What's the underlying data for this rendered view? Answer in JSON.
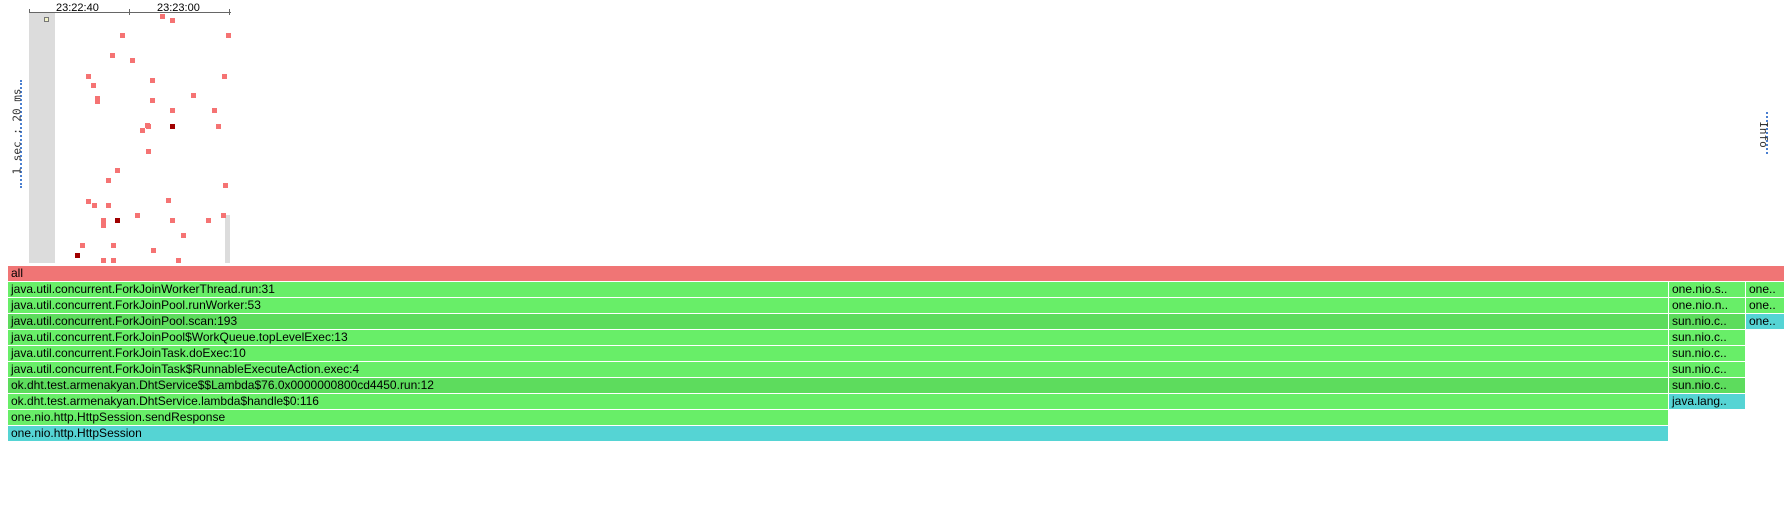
{
  "heatmap": {
    "time_labels": [
      "23:22:40",
      "23:23:00"
    ],
    "y_scale_label": "1 sec : 20 ms",
    "colors": {
      "cell": "#f57373",
      "hot_cell": "#a00000",
      "selection": "#dcdcdc"
    }
  },
  "info_label": "Info",
  "flamegraph": {
    "colors": {
      "all": "#f07575",
      "java": "#68ee68",
      "native": "#55d4d4"
    },
    "frames": {
      "all": "all",
      "worker_thread": "java.util.concurrent.ForkJoinWorkerThread.run:31",
      "run_worker": "java.util.concurrent.ForkJoinPool.runWorker:53",
      "scan": "java.util.concurrent.ForkJoinPool.scan:193",
      "top_level_exec": "java.util.concurrent.ForkJoinPool$WorkQueue.topLevelExec:13",
      "do_exec": "java.util.concurrent.ForkJoinTask.doExec:10",
      "runnable_exec": "java.util.concurrent.ForkJoinTask$RunnableExecuteAction.exec:4",
      "lambda_run": "ok.dht.test.armenakyan.DhtService$$Lambda$76.0x0000000800cd4450.run:12",
      "lambda_handle": "ok.dht.test.armenakyan.DhtService.lambda$handle$0:116",
      "send_response": "one.nio.http.HttpSession.sendResponse",
      "http_session": "one.nio.http.HttpSession",
      "r1_a": "one.nio.s..",
      "r1_b": "one..",
      "r2_a": "one.nio.n..",
      "r2_b": "one..",
      "r3_a": "sun.nio.c..",
      "r3_b": "one..",
      "r4_a": "sun.nio.c..",
      "r5_a": "sun.nio.c..",
      "r6_a": "sun.nio.c..",
      "r7_a": "sun.nio.c..",
      "r8_a": "java.lang.."
    }
  }
}
